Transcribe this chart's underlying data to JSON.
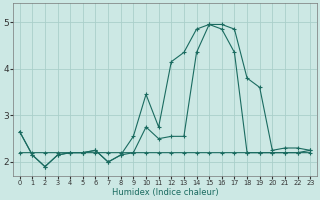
{
  "xlabel": "Humidex (Indice chaleur)",
  "xlim": [
    -0.5,
    23.5
  ],
  "ylim": [
    1.7,
    5.4
  ],
  "yticks": [
    2,
    3,
    4,
    5
  ],
  "xticks": [
    0,
    1,
    2,
    3,
    4,
    5,
    6,
    7,
    8,
    9,
    10,
    11,
    12,
    13,
    14,
    15,
    16,
    17,
    18,
    19,
    20,
    21,
    22,
    23
  ],
  "bg_color": "#cce8e4",
  "grid_color": "#aacfca",
  "line_color": "#1a6b60",
  "line1_x": [
    0,
    1,
    2,
    3,
    4,
    5,
    6,
    7,
    8,
    9,
    10,
    11,
    12,
    13,
    14,
    15,
    16,
    17,
    18,
    19,
    20,
    21,
    22,
    23
  ],
  "line1_y": [
    2.65,
    2.15,
    1.9,
    2.15,
    2.2,
    2.2,
    2.25,
    2.0,
    2.15,
    2.55,
    3.45,
    2.75,
    4.15,
    4.35,
    4.85,
    4.95,
    4.85,
    4.35,
    2.2,
    2.2,
    2.2,
    2.2,
    2.2,
    2.2
  ],
  "line2_x": [
    0,
    1,
    2,
    3,
    4,
    5,
    6,
    7,
    8,
    9,
    10,
    11,
    12,
    13,
    14,
    15,
    16,
    17,
    18,
    19,
    20,
    21,
    22,
    23
  ],
  "line2_y": [
    2.65,
    2.15,
    1.9,
    2.15,
    2.2,
    2.2,
    2.25,
    2.0,
    2.15,
    2.2,
    2.75,
    2.5,
    2.55,
    2.55,
    4.35,
    4.95,
    4.95,
    4.85,
    3.8,
    3.6,
    2.25,
    2.3,
    2.3,
    2.25
  ],
  "line3_x": [
    0,
    1,
    2,
    3,
    4,
    5,
    6,
    7,
    8,
    9,
    10,
    11,
    12,
    13,
    14,
    15,
    16,
    17,
    18,
    19,
    20,
    21,
    22,
    23
  ],
  "line3_y": [
    2.2,
    2.2,
    2.2,
    2.2,
    2.2,
    2.2,
    2.2,
    2.2,
    2.2,
    2.2,
    2.2,
    2.2,
    2.2,
    2.2,
    2.2,
    2.2,
    2.2,
    2.2,
    2.2,
    2.2,
    2.2,
    2.2,
    2.2,
    2.25
  ]
}
